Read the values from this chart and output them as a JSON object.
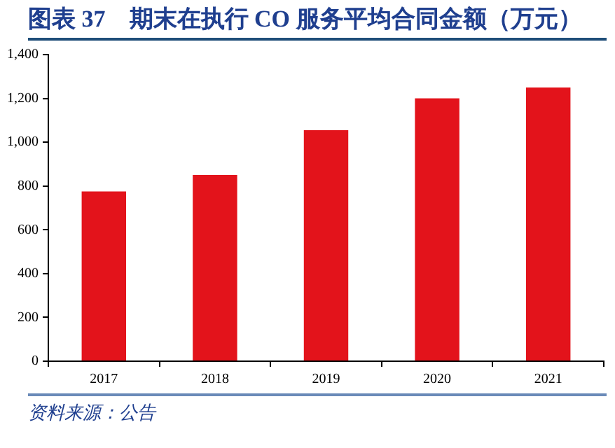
{
  "chart_data": {
    "type": "bar",
    "title": "图表 37　期末在执行 CO 服务平均合同金额（万元）",
    "categories": [
      "2017",
      "2018",
      "2019",
      "2020",
      "2021"
    ],
    "values": [
      775,
      850,
      1055,
      1200,
      1250
    ],
    "color": "#e3131b",
    "ylim": [
      0,
      1400
    ],
    "yticks": [
      0,
      200,
      400,
      600,
      800,
      {
        "value": 1000,
        "label": "1,000"
      },
      {
        "value": 1200,
        "label": "1,200"
      },
      {
        "value": 1400,
        "label": "1,400"
      }
    ],
    "annotations": [
      "资料来源：公告"
    ],
    "grid": false,
    "legend": false
  }
}
